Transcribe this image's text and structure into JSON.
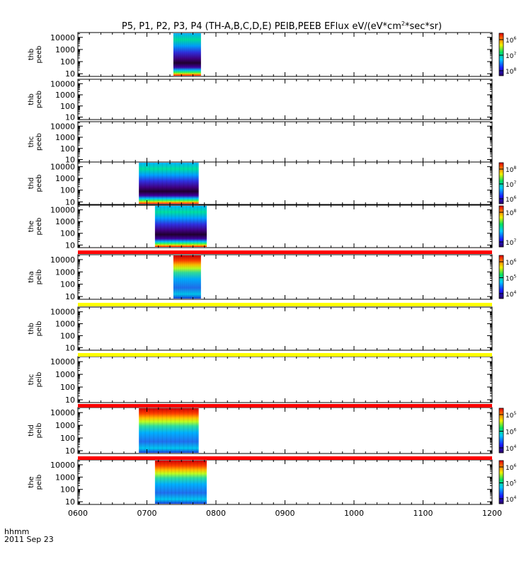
{
  "chart_data": {
    "type": "heatmap",
    "title_parts": {
      "pre": "P5, P1, P2, P3, P4 (TH-A,B,C,D,E) PEIB,PEEB EFlux eV/(eV*cm",
      "sup": "2",
      "post": "*sec*sr)"
    },
    "x_axis": {
      "label_line1": "hhmm",
      "label_line2": "2011 Sep 23",
      "ticks": [
        "0600",
        "0700",
        "0800",
        "0900",
        "1000",
        "1100",
        "1200"
      ],
      "range_hours": [
        6,
        12
      ]
    },
    "y_axis": {
      "scale": "log",
      "range_eV": [
        6,
        25000
      ],
      "ticks": [
        "10",
        "100",
        "1000",
        "10000"
      ]
    },
    "panels": [
      {
        "probe": "thb",
        "species": "peeb",
        "data_start_hhmm": "0723",
        "data_end_hhmm": "0747",
        "colorbar": {
          "ticks": [
            {
              "base": "10",
              "exp": "6"
            },
            {
              "base": "10",
              "exp": "7"
            },
            {
              "base": "10",
              "exp": "8"
            }
          ]
        }
      },
      {
        "probe": "thb",
        "species": "peeb",
        "data_start_hhmm": null,
        "data_end_hhmm": null,
        "colorbar": null
      },
      {
        "probe": "thc",
        "species": "peeb",
        "data_start_hhmm": null,
        "data_end_hhmm": null,
        "colorbar": null
      },
      {
        "probe": "thd",
        "species": "peeb",
        "data_start_hhmm": "0653",
        "data_end_hhmm": "0745",
        "colorbar": {
          "ticks": [
            {
              "base": "10",
              "exp": "8"
            },
            {
              "base": "10",
              "exp": "7"
            },
            {
              "base": "10",
              "exp": "6"
            }
          ]
        }
      },
      {
        "probe": "the",
        "species": "peeb",
        "data_start_hhmm": "0707",
        "data_end_hhmm": "0752",
        "colorbar": {
          "ticks": [
            {
              "base": "10",
              "exp": "8"
            },
            {
              "base": "10",
              "exp": "7"
            }
          ]
        }
      },
      {
        "probe": "tha",
        "species": "peib",
        "data_start_hhmm": "0723",
        "data_end_hhmm": "0747",
        "colorbar": {
          "ticks": [
            {
              "base": "10",
              "exp": "6"
            },
            {
              "base": "10",
              "exp": "5"
            },
            {
              "base": "10",
              "exp": "4"
            }
          ]
        }
      },
      {
        "probe": "thb",
        "species": "peib",
        "data_start_hhmm": null,
        "data_end_hhmm": null,
        "colorbar": null
      },
      {
        "probe": "thc",
        "species": "peib",
        "data_start_hhmm": null,
        "data_end_hhmm": null,
        "colorbar": null
      },
      {
        "probe": "thd",
        "species": "peib",
        "data_start_hhmm": "0653",
        "data_end_hhmm": "0745",
        "colorbar": {
          "ticks": [
            {
              "base": "10",
              "exp": "5"
            },
            {
              "base": "10",
              "exp": "6"
            },
            {
              "base": "10",
              "exp": "4"
            }
          ]
        }
      },
      {
        "probe": "the",
        "species": "peib",
        "data_start_hhmm": "0707",
        "data_end_hhmm": "0752",
        "colorbar": {
          "ticks": [
            {
              "base": "10",
              "exp": "6"
            },
            {
              "base": "10",
              "exp": "5"
            },
            {
              "base": "10",
              "exp": "4"
            }
          ]
        }
      }
    ],
    "separator_bars": [
      {
        "after_panel": 5,
        "color": "#ff0000"
      },
      {
        "after_panel": 6,
        "color": "#ffff00"
      },
      {
        "after_panel": 7,
        "color": "#ffff00"
      },
      {
        "after_panel": 8,
        "color": "#ff0000"
      },
      {
        "after_panel": 9,
        "color": "#ff0000"
      }
    ],
    "colormap": "rainbow (purple-blue-cyan-green-yellow-red)"
  }
}
